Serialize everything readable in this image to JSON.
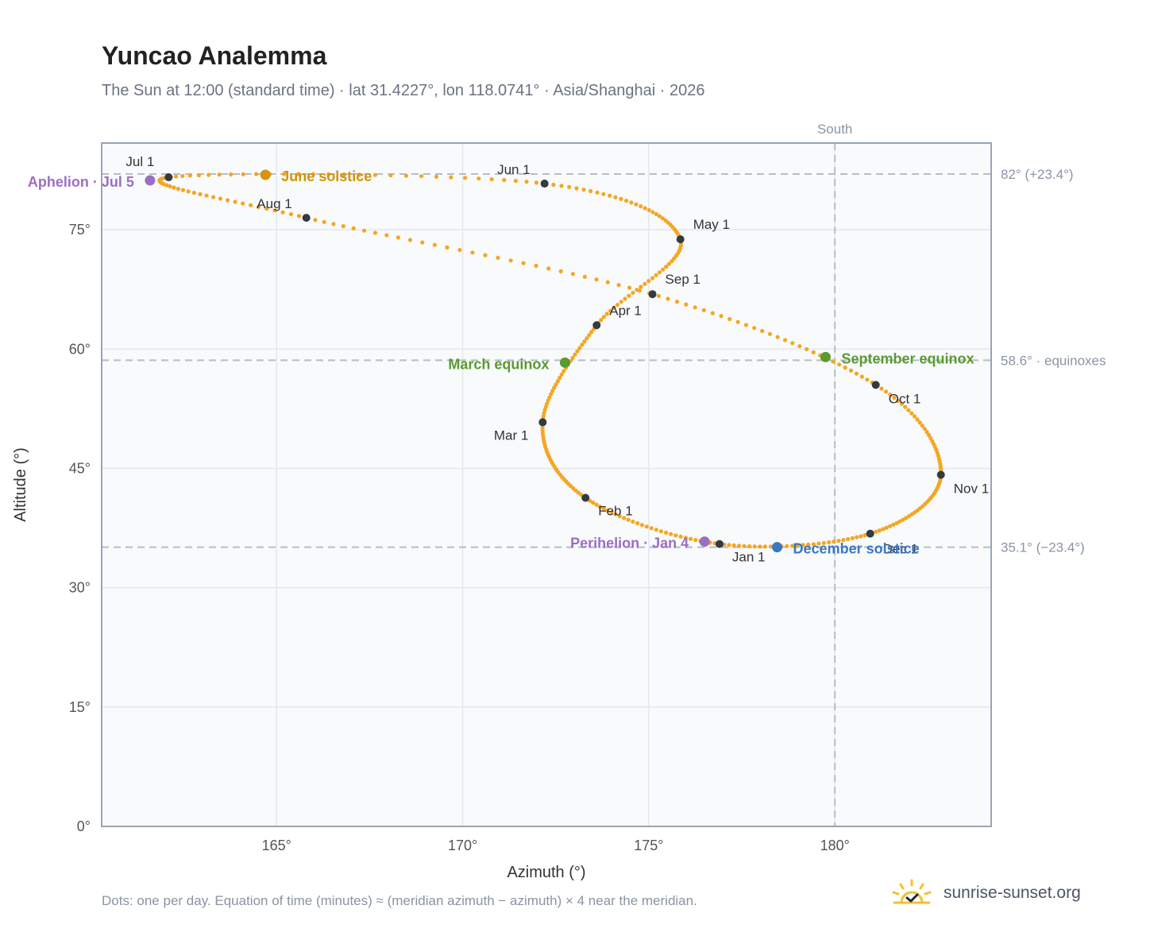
{
  "header": {
    "title": "Yuncao Analemma",
    "subtitle": "The Sun at 12:00 (standard time) · lat 31.4227°, lon 118.0741° · Asia/Shanghai · 2026"
  },
  "footer": {
    "note": "Dots: one per day. Equation of time (minutes) ≈ (meridian azimuth − azimuth) × 4 near the meridian.",
    "brand": "sunrise-sunset.org"
  },
  "colors": {
    "curve": "#f5a623",
    "month_dot": "#333a42",
    "solstice_june": "#d4930a",
    "solstice_december": "#3a78c0",
    "equinox": "#5a9a2e",
    "apsis": "#9b6fc0",
    "plot_bg": "#f8fafc",
    "grid": "#e2e8ee",
    "frame": "#98a4b4",
    "ref_line": "#b4bec8"
  },
  "chart_data": {
    "type": "scatter",
    "xlabel": "Azimuth (°)",
    "ylabel": "Altitude (°)",
    "xlim": [
      160.3,
      184.2
    ],
    "ylim": [
      0,
      85.9
    ],
    "xticks": [
      165,
      170,
      175,
      180
    ],
    "xtick_labels": [
      "165°",
      "170°",
      "175°",
      "180°"
    ],
    "yticks": [
      0,
      15,
      30,
      45,
      60,
      75
    ],
    "ytick_labels": [
      "0°",
      "15°",
      "30°",
      "45°",
      "60°",
      "75°"
    ],
    "grid": true,
    "meridian": {
      "azimuth": 180,
      "label": "South"
    },
    "reference_lines": [
      {
        "altitude": 82.0,
        "label": "82° (+23.4°)"
      },
      {
        "altitude": 58.6,
        "label": "58.6° · equinoxes"
      },
      {
        "altitude": 35.1,
        "label": "35.1° (−23.4°)"
      }
    ],
    "series_note": "one dot per day",
    "month_points": [
      {
        "label": "Jan 1",
        "az": 176.9,
        "alt": 35.5
      },
      {
        "label": "Feb 1",
        "az": 173.3,
        "alt": 41.3
      },
      {
        "label": "Mar 1",
        "az": 172.15,
        "alt": 50.8
      },
      {
        "label": "Apr 1",
        "az": 173.6,
        "alt": 63.0
      },
      {
        "label": "May 1",
        "az": 175.85,
        "alt": 73.8
      },
      {
        "label": "Jun 1",
        "az": 172.2,
        "alt": 80.8
      },
      {
        "label": "Jul 1",
        "az": 162.1,
        "alt": 81.6
      },
      {
        "label": "Aug 1",
        "az": 165.8,
        "alt": 76.5
      },
      {
        "label": "Sep 1",
        "az": 175.1,
        "alt": 66.9
      },
      {
        "label": "Oct 1",
        "az": 181.1,
        "alt": 55.5
      },
      {
        "label": "Nov 1",
        "az": 182.85,
        "alt": 44.2
      },
      {
        "label": "Dec 1",
        "az": 180.95,
        "alt": 36.8
      }
    ],
    "events": [
      {
        "label": "June solstice",
        "az": 164.7,
        "alt": 81.9,
        "kind": "solstice_june"
      },
      {
        "label": "December solstice",
        "az": 178.45,
        "alt": 35.1,
        "kind": "solstice_december"
      },
      {
        "label": "March equinox",
        "az": 172.75,
        "alt": 58.3,
        "kind": "equinox"
      },
      {
        "label": "September equinox",
        "az": 179.75,
        "alt": 59.0,
        "kind": "equinox"
      },
      {
        "label": "Aphelion · Jul 5",
        "az": 161.6,
        "alt": 81.2,
        "kind": "apsis"
      },
      {
        "label": "Perihelion · Jan 4",
        "az": 176.5,
        "alt": 35.8,
        "kind": "apsis"
      }
    ]
  }
}
